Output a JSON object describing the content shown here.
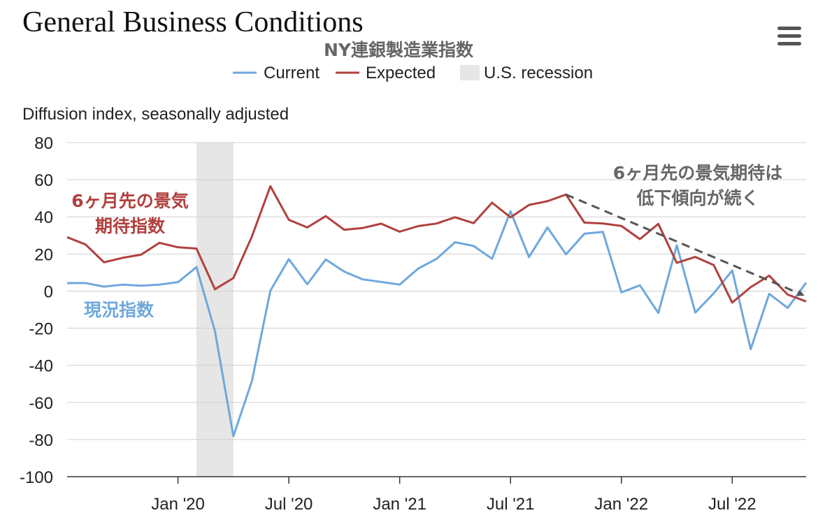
{
  "header": {
    "title": "General Business Conditions",
    "subtitle": "NY連銀製造業指数",
    "menu_icon": "hamburger-menu-icon"
  },
  "legend": [
    {
      "label": "Current",
      "color": "#6fa8dc"
    },
    {
      "label": "Expected",
      "color": "#b0413e"
    },
    {
      "label": "U.S. recession",
      "color": "#e6e6e6"
    }
  ],
  "annotations": {
    "expected_label": [
      "6ヶ月先の景気",
      "期待指数"
    ],
    "current_label": "現況指数",
    "trend_label": [
      "6ヶ月先の景気期待は",
      "低下傾向が続く"
    ]
  },
  "chart_data": {
    "type": "line",
    "ylabel": "Diffusion index, seasonally adjusted",
    "ylim": [
      -100,
      80
    ],
    "yticks": [
      80,
      60,
      40,
      20,
      0,
      -20,
      -40,
      -60,
      -80,
      -100
    ],
    "x": [
      "2019-07",
      "2019-08",
      "2019-09",
      "2019-10",
      "2019-11",
      "2019-12",
      "2020-01",
      "2020-02",
      "2020-03",
      "2020-04",
      "2020-05",
      "2020-06",
      "2020-07",
      "2020-08",
      "2020-09",
      "2020-10",
      "2020-11",
      "2020-12",
      "2021-01",
      "2021-02",
      "2021-03",
      "2021-04",
      "2021-05",
      "2021-06",
      "2021-07",
      "2021-08",
      "2021-09",
      "2021-10",
      "2021-11",
      "2021-12",
      "2022-01",
      "2022-02",
      "2022-03",
      "2022-04",
      "2022-05",
      "2022-06",
      "2022-07",
      "2022-08",
      "2022-09",
      "2022-10",
      "2022-11"
    ],
    "xticks": [
      {
        "label": "Jan '20",
        "at": "2020-01"
      },
      {
        "label": "Jul '20",
        "at": "2020-07"
      },
      {
        "label": "Jan '21",
        "at": "2021-01"
      },
      {
        "label": "Jul '21",
        "at": "2021-07"
      },
      {
        "label": "Jan '22",
        "at": "2022-01"
      },
      {
        "label": "Jul '22",
        "at": "2022-07"
      }
    ],
    "series": [
      {
        "name": "Current",
        "color": "#6fa8dc",
        "values": [
          4.3,
          4.3,
          2.4,
          3.5,
          2.9,
          3.5,
          4.8,
          12.9,
          -21.5,
          -78.2,
          -48.5,
          0.2,
          17.2,
          3.7,
          17.0,
          10.5,
          6.3,
          4.9,
          3.5,
          12.1,
          17.4,
          26.3,
          24.3,
          17.4,
          43.0,
          18.3,
          34.3,
          19.8,
          30.9,
          31.9,
          -0.7,
          3.1,
          -11.8,
          24.6,
          -11.6,
          -1.2,
          11.1,
          -31.3,
          -1.5,
          -9.1,
          4.5
        ]
      },
      {
        "name": "Expected",
        "color": "#b0413e",
        "values": [
          29.0,
          25.1,
          15.5,
          17.9,
          19.6,
          26.0,
          23.6,
          22.9,
          1.0,
          7.0,
          29.4,
          56.5,
          38.4,
          34.3,
          40.4,
          33.0,
          34.0,
          36.3,
          32.0,
          35.0,
          36.4,
          39.8,
          36.6,
          47.6,
          39.7,
          46.4,
          48.4,
          52.0,
          36.9,
          36.4,
          35.1,
          28.0,
          36.2,
          15.2,
          18.4,
          14.0,
          -6.2,
          2.1,
          8.3,
          -1.9,
          -5.6
        ]
      }
    ],
    "recession": {
      "start": "2020-02",
      "end": "2020-04"
    },
    "trend_arrow": {
      "from": {
        "x": "2021-10",
        "y": 52
      },
      "to": {
        "x": "2022-11",
        "y": -3
      }
    }
  }
}
